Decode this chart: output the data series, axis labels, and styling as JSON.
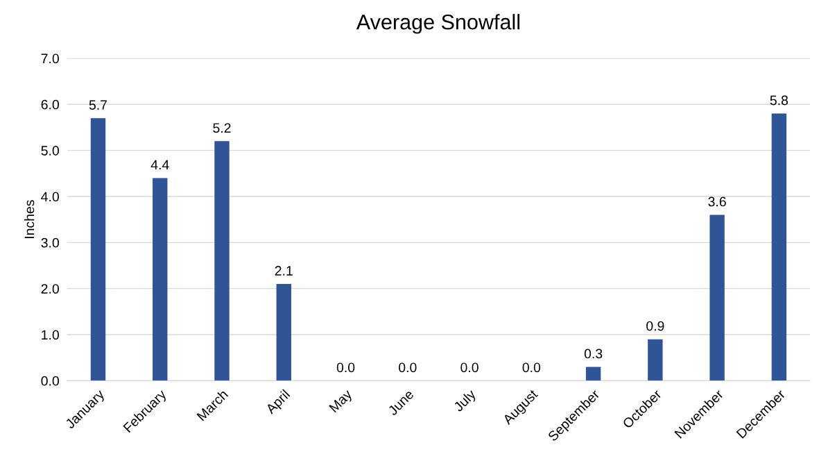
{
  "chart_data": {
    "type": "bar",
    "title": "Average Snowfall",
    "ylabel": "Inches",
    "categories": [
      "January",
      "February",
      "March",
      "April",
      "May",
      "June",
      "July",
      "August",
      "September",
      "October",
      "November",
      "December"
    ],
    "values": [
      5.7,
      4.4,
      5.2,
      2.1,
      0.0,
      0.0,
      0.0,
      0.0,
      0.3,
      0.9,
      3.6,
      5.8
    ],
    "color": "#2f5597",
    "ylim": [
      0,
      7
    ],
    "yticks": [
      {
        "value": 0,
        "label": "0.0"
      },
      {
        "value": 1,
        "label": "1.0"
      },
      {
        "value": 2,
        "label": "2.0"
      },
      {
        "value": 3,
        "label": "3.0"
      },
      {
        "value": 4,
        "label": "4.0"
      },
      {
        "value": 5,
        "label": "5.0"
      },
      {
        "value": 6,
        "label": "6.0"
      },
      {
        "value": 7,
        "label": "7.0"
      }
    ],
    "value_labels": [
      "5.7",
      "4.4",
      "5.2",
      "2.1",
      "0.0",
      "0.0",
      "0.0",
      "0.0",
      "0.3",
      "0.9",
      "3.6",
      "5.8"
    ],
    "grid": "y",
    "legend": false
  }
}
